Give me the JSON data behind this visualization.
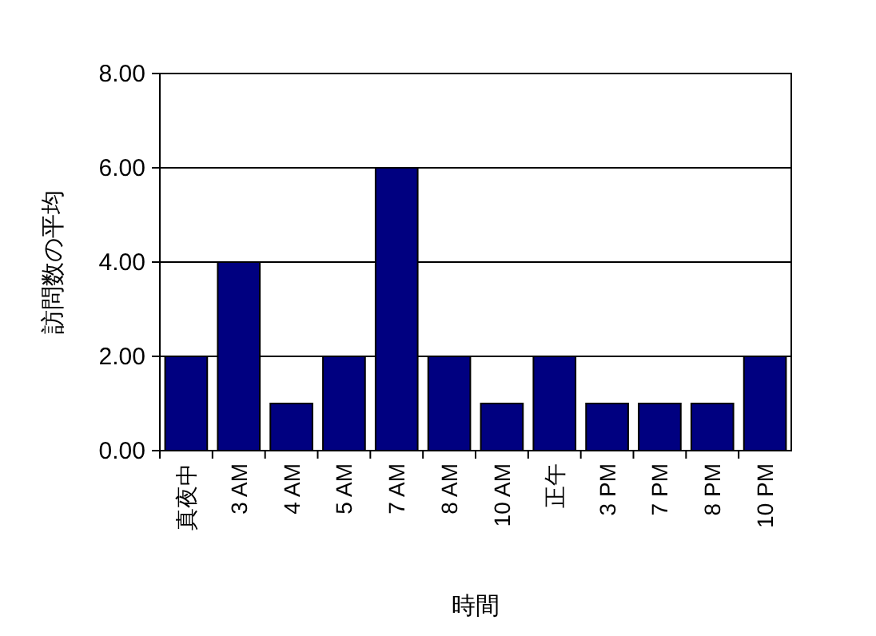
{
  "chart_data": {
    "type": "bar",
    "xlabel": "時間",
    "ylabel": "訪問数の平均",
    "categories": [
      "真夜中",
      "3 AM",
      "4 AM",
      "5 AM",
      "7 AM",
      "8 AM",
      "10 AM",
      "正午",
      "3 PM",
      "7 PM",
      "8 PM",
      "10 PM"
    ],
    "values": [
      2,
      4,
      1,
      2,
      6,
      2,
      1,
      2,
      1,
      1,
      1,
      2
    ],
    "color": "#000080",
    "ylim": [
      0,
      8
    ],
    "yticks": [
      {
        "value": 0,
        "label": "0.00"
      },
      {
        "value": 2,
        "label": "2.00"
      },
      {
        "value": 4,
        "label": "4.00"
      },
      {
        "value": 6,
        "label": "6.00"
      },
      {
        "value": 8,
        "label": "8.00"
      }
    ],
    "grid": "y"
  }
}
